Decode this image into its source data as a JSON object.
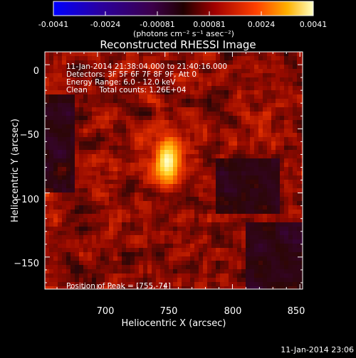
{
  "colorbar": {
    "tick_labels": [
      "-0.0041",
      "-0.0024",
      "-0.00081",
      "0.00081",
      "0.0024",
      "0.0041"
    ],
    "units": "(photons cm⁻² s⁻¹ asec⁻²)",
    "range": [
      -0.0041,
      0.0041
    ]
  },
  "chart_data": {
    "type": "heatmap",
    "title": "Reconstructed RHESSI Image",
    "xlabel": "Heliocentric X (arcsec)",
    "ylabel": "Heliocentric Y (arcsec)",
    "xlim": [
      661,
      852
    ],
    "ylim": [
      -175,
      10
    ],
    "x_ticks": [
      700,
      750,
      800,
      850
    ],
    "y_ticks": [
      0,
      -50,
      -100,
      -150
    ],
    "x_tick_labels": [
      "700",
      "750",
      "800",
      "850"
    ],
    "y_tick_labels": [
      "0",
      "−50",
      "−100",
      "−150"
    ],
    "peak": {
      "x": 755,
      "y": -74
    },
    "annotations": [
      "11-Jan-2014 21:38:04.000 to 21:40:16.000",
      "Detectors: 3F 5F 6F 7F 8F 9F, Att 0",
      "Energy Range: 6.0 - 12.0 keV",
      "Clean     Total counts: 1.26E+04"
    ],
    "peak_label": "Position of Peak = [755,-74]",
    "sources": [
      {
        "x": 752,
        "y": -75,
        "sx": 8,
        "sy": 14,
        "amp": 1.0
      },
      {
        "x": 822,
        "y": -45,
        "sx": 6,
        "sy": 8,
        "amp": 0.35
      }
    ]
  },
  "footer": {
    "timestamp": "11-Jan-2014 23:06"
  }
}
